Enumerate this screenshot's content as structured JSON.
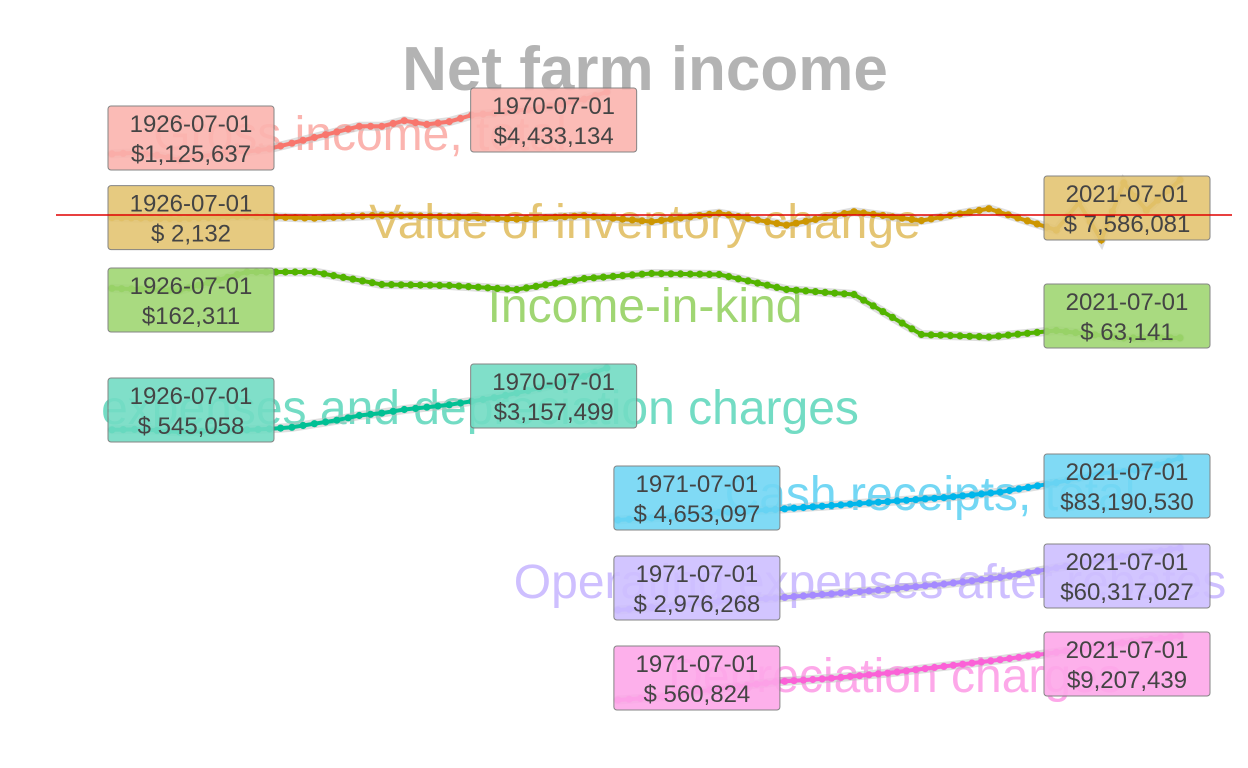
{
  "chart_data": {
    "type": "line",
    "title": "Net farm income",
    "xlabel": "",
    "ylabel": "",
    "grid": false,
    "legend": "none",
    "series": [
      {
        "name": "Gross income, total",
        "color": "#F8766D",
        "start": {
          "date": "1926-07-01",
          "value": "$1,125,637"
        },
        "end": {
          "date": "1970-07-01",
          "value": "$4,433,134"
        },
        "x": [
          "1926-07-01",
          "1928-07-01",
          "1930-07-01",
          "1932-07-01",
          "1934-07-01",
          "1936-07-01",
          "1938-07-01",
          "1940-07-01",
          "1942-07-01",
          "1944-07-01",
          "1946-07-01",
          "1948-07-01",
          "1950-07-01",
          "1952-07-01",
          "1954-07-01",
          "1956-07-01",
          "1958-07-01",
          "1960-07-01",
          "1962-07-01",
          "1964-07-01",
          "1966-07-01",
          "1968-07-01",
          "1970-07-01"
        ],
        "y": [
          1125637,
          1180000,
          1050000,
          800000,
          1000000,
          1180000,
          1250000,
          1400000,
          1700000,
          2000000,
          2300000,
          2600000,
          2600000,
          2900000,
          2700000,
          2850000,
          3200000,
          3300000,
          3450000,
          3550000,
          3800000,
          4050000,
          4433134
        ]
      },
      {
        "name": "Value of inventory change",
        "color": "#CD9600",
        "start": {
          "date": "1926-07-01",
          "value": "$  2,132"
        },
        "end": {
          "date": "2021-07-01",
          "value": "$ 7,586,081"
        },
        "x": [
          "1926-07-01",
          "1932-07-01",
          "1938-07-01",
          "1944-07-01",
          "1950-07-01",
          "1956-07-01",
          "1962-07-01",
          "1968-07-01",
          "1974-07-01",
          "1980-07-01",
          "1986-07-01",
          "1992-07-01",
          "1998-07-01",
          "2004-07-01",
          "2010-07-01",
          "2012-07-01",
          "2014-07-01",
          "2016-07-01",
          "2018-07-01",
          "2021-07-01"
        ],
        "y": [
          2132,
          -200000,
          300000,
          -100000,
          500000,
          200000,
          -300000,
          400000,
          -800000,
          900000,
          -1500000,
          1200000,
          -600000,
          1800000,
          -2500000,
          3000000,
          -4500000,
          7000000,
          1500000,
          7586081
        ]
      },
      {
        "name": "Income-in-kind",
        "color": "#53B400",
        "start": {
          "date": "1926-07-01",
          "value": "$162,311"
        },
        "end": {
          "date": "2021-07-01",
          "value": "$ 63,141"
        },
        "x": [
          "1926-07-01",
          "1932-07-01",
          "1938-07-01",
          "1944-07-01",
          "1950-07-01",
          "1956-07-01",
          "1962-07-01",
          "1968-07-01",
          "1974-07-01",
          "1980-07-01",
          "1986-07-01",
          "1992-07-01",
          "1998-07-01",
          "2004-07-01",
          "2010-07-01",
          "2016-07-01",
          "2021-07-01"
        ],
        "y": [
          162311,
          158000,
          195000,
          195000,
          170000,
          168000,
          160000,
          182000,
          192000,
          190000,
          160000,
          150000,
          70000,
          65000,
          78000,
          63000,
          63141
        ]
      },
      {
        "name": "expenses and depreciation charges",
        "color": "#00C094",
        "start": {
          "date": "1926-07-01",
          "value": "$  545,058"
        },
        "end": {
          "date": "1970-07-01",
          "value": "$3,157,499"
        },
        "x": [
          "1926-07-01",
          "1928-07-01",
          "1930-07-01",
          "1932-07-01",
          "1934-07-01",
          "1936-07-01",
          "1938-07-01",
          "1940-07-01",
          "1942-07-01",
          "1944-07-01",
          "1946-07-01",
          "1948-07-01",
          "1950-07-01",
          "1952-07-01",
          "1954-07-01",
          "1956-07-01",
          "1958-07-01",
          "1960-07-01",
          "1962-07-01",
          "1964-07-01",
          "1966-07-01",
          "1968-07-01",
          "1970-07-01"
        ],
        "y": [
          545058,
          560000,
          520000,
          450000,
          480000,
          520000,
          540000,
          580000,
          650000,
          800000,
          950000,
          1150000,
          1250000,
          1400000,
          1500000,
          1600000,
          1750000,
          1900000,
          2100000,
          2300000,
          2550000,
          2800000,
          3157499
        ]
      },
      {
        "name": "Cash receipts, total",
        "color": "#00B6EB",
        "start": {
          "date": "1971-07-01",
          "value": "$ 4,653,097"
        },
        "end": {
          "date": "2021-07-01",
          "value": "$83,190,530"
        },
        "x": [
          "1971-07-01",
          "1975-07-01",
          "1980-07-01",
          "1985-07-01",
          "1990-07-01",
          "1995-07-01",
          "2000-07-01",
          "2005-07-01",
          "2010-07-01",
          "2014-07-01",
          "2016-07-01",
          "2018-07-01",
          "2021-07-01"
        ],
        "y": [
          4653097,
          8000000,
          14000000,
          18000000,
          23000000,
          28000000,
          33000000,
          40000000,
          52000000,
          64000000,
          66000000,
          70000000,
          83190530
        ]
      },
      {
        "name": "Operating expenses after rebates",
        "color": "#A58AFF",
        "start": {
          "date": "1971-07-01",
          "value": "$ 2,976,268"
        },
        "end": {
          "date": "2021-07-01",
          "value": "$60,317,027"
        },
        "x": [
          "1971-07-01",
          "1975-07-01",
          "1980-07-01",
          "1985-07-01",
          "1990-07-01",
          "1995-07-01",
          "2000-07-01",
          "2005-07-01",
          "2010-07-01",
          "2015-07-01",
          "2021-07-01"
        ],
        "y": [
          2976268,
          6000000,
          11000000,
          14000000,
          18000000,
          22000000,
          27000000,
          33000000,
          42000000,
          51000000,
          60317027
        ]
      },
      {
        "name": "Depreciation charges",
        "color": "#FB61D7",
        "start": {
          "date": "1971-07-01",
          "value": "$  560,824"
        },
        "end": {
          "date": "2021-07-01",
          "value": "$9,207,439"
        },
        "x": [
          "1971-07-01",
          "1975-07-01",
          "1980-07-01",
          "1985-07-01",
          "1990-07-01",
          "1995-07-01",
          "2000-07-01",
          "2005-07-01",
          "2010-07-01",
          "2015-07-01",
          "2021-07-01"
        ],
        "y": [
          560824,
          1000000,
          2100000,
          3000000,
          3500000,
          4200000,
          5100000,
          6000000,
          7000000,
          8100000,
          9207439
        ]
      }
    ],
    "reference_line": {
      "value": 0,
      "color": "#E00000"
    }
  }
}
